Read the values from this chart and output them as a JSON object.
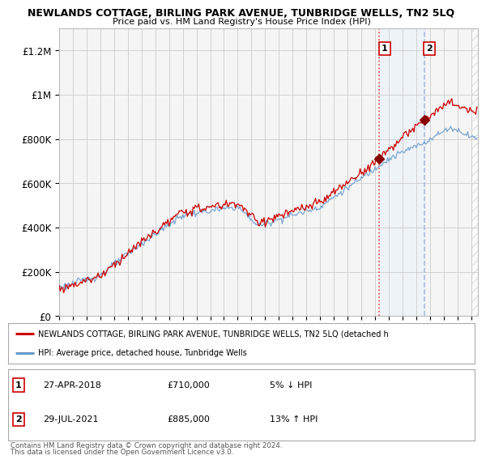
{
  "title": "NEWLANDS COTTAGE, BIRLING PARK AVENUE, TUNBRIDGE WELLS, TN2 5LQ",
  "subtitle": "Price paid vs. HM Land Registry's House Price Index (HPI)",
  "ylabel_ticks": [
    "£0",
    "£200K",
    "£400K",
    "£600K",
    "£800K",
    "£1M",
    "£1.2M"
  ],
  "ytick_values": [
    0,
    200000,
    400000,
    600000,
    800000,
    1000000,
    1200000
  ],
  "ylim": [
    0,
    1300000
  ],
  "xlim_start": 1995.0,
  "xlim_end": 2025.5,
  "sale1_date": 2018.32,
  "sale1_price": 710000,
  "sale2_date": 2021.58,
  "sale2_price": 885000,
  "legend_line1": "NEWLANDS COTTAGE, BIRLING PARK AVENUE, TUNBRIDGE WELLS, TN2 5LQ (detached h",
  "legend_line2": "HPI: Average price, detached house, Tunbridge Wells",
  "footer1": "Contains HM Land Registry data © Crown copyright and database right 2024.",
  "footer2": "This data is licensed under the Open Government Licence v3.0.",
  "line_color_red": "#cc0000",
  "line_color_blue": "#6699cc",
  "bg_color": "#ffffff",
  "plot_bg_color": "#f5f5f5",
  "grid_color": "#cccccc",
  "shade_color": "#ddeeff"
}
